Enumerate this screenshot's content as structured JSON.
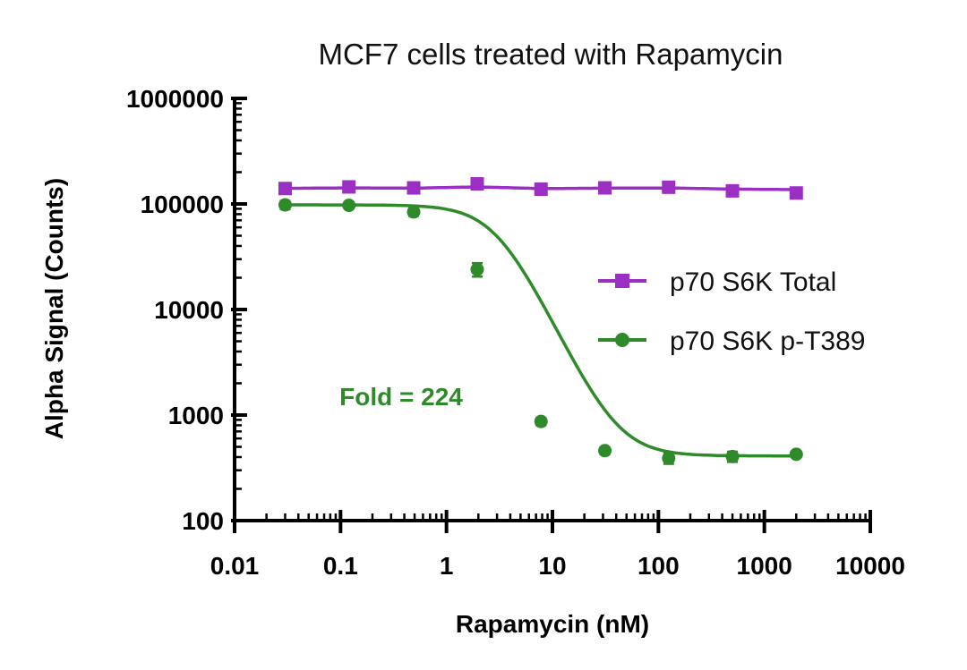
{
  "chart_data": {
    "type": "scatter",
    "title": "MCF7 cells treated with Rapamycin",
    "xlabel": "Rapamycin (nM)",
    "ylabel": "Alpha Signal (Counts)",
    "x_scale": "log",
    "y_scale": "log",
    "xlim": [
      0.01,
      10000
    ],
    "ylim": [
      100,
      1000000
    ],
    "x_ticks": [
      0.01,
      0.1,
      1,
      10,
      100,
      1000,
      10000
    ],
    "x_tick_labels": [
      "0.01",
      "0.1",
      "1",
      "10",
      "100",
      "1000",
      "10000"
    ],
    "y_ticks": [
      100,
      1000,
      10000,
      100000,
      1000000
    ],
    "y_tick_labels": [
      "100",
      "1000",
      "10000",
      "100000",
      "1000000"
    ],
    "grid": false,
    "legend_position": "right",
    "series": [
      {
        "name": "p70 S6K Total",
        "marker": "square",
        "color": "#9b2fc3",
        "x": [
          0.03,
          0.12,
          0.49,
          1.95,
          7.8,
          31.25,
          125,
          500,
          2000
        ],
        "y": [
          140000,
          145000,
          142000,
          155000,
          138000,
          142000,
          144000,
          133000,
          127000
        ],
        "fit_curve": "flat"
      },
      {
        "name": "p70 S6K p-T389",
        "marker": "circle",
        "color": "#2f8a2a",
        "x": [
          0.03,
          0.12,
          0.49,
          1.95,
          7.8,
          31.25,
          125,
          500,
          2000
        ],
        "y": [
          98000,
          97000,
          84000,
          24000,
          870,
          460,
          390,
          405,
          425
        ],
        "error": [
          9000,
          6000,
          7000,
          3500,
          70,
          35,
          45,
          45,
          25
        ],
        "fit_curve": "sigmoid",
        "fit": {
          "top": 98000,
          "bottom": 410,
          "ic50": 3.0,
          "hill": 2.1
        }
      }
    ],
    "annotations": [
      {
        "text": "Fold = 224",
        "color": "#2f8a2a"
      }
    ]
  }
}
